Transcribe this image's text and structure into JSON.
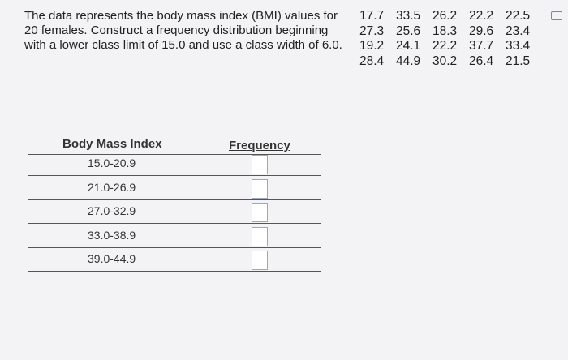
{
  "problem": {
    "text": "The data represents the body mass index (BMI) values for 20 females. Construct a frequency distribution beginning with a lower class limit of 15.0 and use a class width of 6.0.",
    "data": [
      [
        17.7,
        33.5,
        26.2,
        22.2,
        22.5
      ],
      [
        27.3,
        25.6,
        18.3,
        29.6,
        23.4
      ],
      [
        19.2,
        24.1,
        22.2,
        37.7,
        33.4
      ],
      [
        28.4,
        44.9,
        30.2,
        26.4,
        21.5
      ]
    ]
  },
  "table": {
    "headers": [
      "Body Mass Index",
      "Frequency"
    ],
    "rows": [
      "15.0-20.9",
      "21.0-26.9",
      "27.0-32.9",
      "33.0-38.9",
      "39.0-44.9"
    ]
  }
}
